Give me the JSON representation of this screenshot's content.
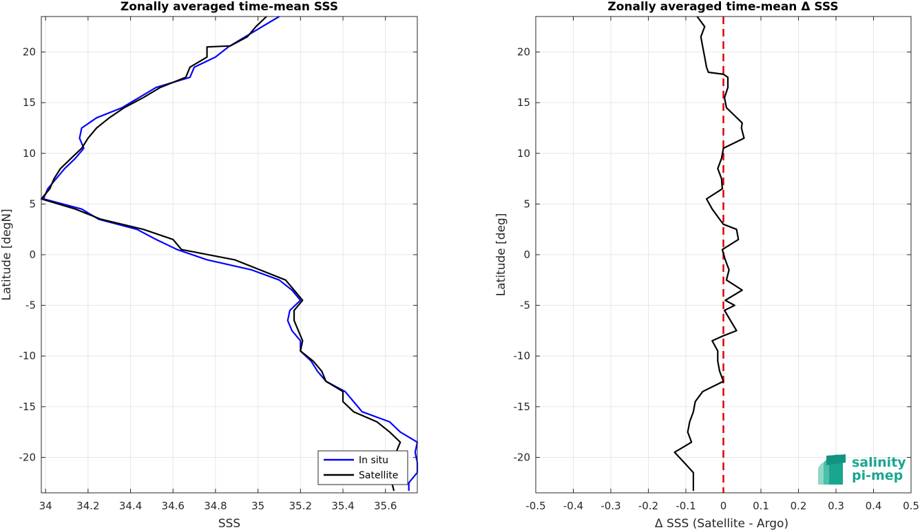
{
  "colors": {
    "in_situ": "#0000ff",
    "satellite": "#000000",
    "zero_line": "#e00000",
    "grid": "#e6e6e6",
    "logo": "#1aa58f"
  },
  "logo": {
    "line1": "salinity",
    "line2": "pi-mep"
  },
  "chart_data": [
    {
      "type": "line",
      "title": "Zonally averaged time-mean SSS",
      "xlabel": "SSS",
      "ylabel": "Latitude [degN]",
      "xlim": [
        33.98,
        35.75
      ],
      "ylim": [
        -23.5,
        23.5
      ],
      "xticks": [
        34,
        34.2,
        34.4,
        34.6,
        34.8,
        35,
        35.2,
        35.4,
        35.6
      ],
      "xtick_labels": [
        "34",
        "34.2",
        "34.4",
        "34.6",
        "34.8",
        "35",
        "35.2",
        "35.4",
        "35.6"
      ],
      "yticks": [
        -20,
        -15,
        -10,
        -5,
        0,
        5,
        10,
        15,
        20
      ],
      "ytick_labels": [
        "-20",
        "-15",
        "-10",
        "-5",
        "0",
        "5",
        "10",
        "15",
        "20"
      ],
      "grid": true,
      "legend": {
        "position": "bottom-right"
      },
      "series": [
        {
          "name": "In situ",
          "color": "#0000ff",
          "points": [
            [
              35.1,
              23.5
            ],
            [
              35.02,
              22.5
            ],
            [
              34.94,
              21.5
            ],
            [
              34.86,
              20.5
            ],
            [
              34.8,
              19.5
            ],
            [
              34.7,
              18.5
            ],
            [
              34.68,
              17.5
            ],
            [
              34.52,
              16.5
            ],
            [
              34.44,
              15.5
            ],
            [
              34.36,
              14.5
            ],
            [
              34.24,
              13.5
            ],
            [
              34.17,
              12.5
            ],
            [
              34.16,
              11.5
            ],
            [
              34.18,
              10.5
            ],
            [
              34.14,
              9.5
            ],
            [
              34.09,
              8.5
            ],
            [
              34.05,
              7.5
            ],
            [
              34.01,
              6.5
            ],
            [
              33.99,
              5.5
            ],
            [
              34.17,
              4.5
            ],
            [
              34.25,
              3.5
            ],
            [
              34.43,
              2.5
            ],
            [
              34.52,
              1.5
            ],
            [
              34.62,
              0.5
            ],
            [
              34.76,
              -0.5
            ],
            [
              34.97,
              -1.5
            ],
            [
              35.1,
              -2.5
            ],
            [
              35.16,
              -3.5
            ],
            [
              35.2,
              -4.5
            ],
            [
              35.15,
              -5.5
            ],
            [
              35.14,
              -6.5
            ],
            [
              35.16,
              -7.5
            ],
            [
              35.2,
              -8.5
            ],
            [
              35.2,
              -9.5
            ],
            [
              35.25,
              -10.5
            ],
            [
              35.28,
              -11.5
            ],
            [
              35.32,
              -12.5
            ],
            [
              35.41,
              -13.5
            ],
            [
              35.45,
              -14.5
            ],
            [
              35.49,
              -15.5
            ],
            [
              35.62,
              -16.5
            ],
            [
              35.67,
              -17.5
            ],
            [
              35.75,
              -18.5
            ],
            [
              35.74,
              -19.5
            ],
            [
              35.75,
              -20.5
            ],
            [
              35.75,
              -21.5
            ],
            [
              35.71,
              -22.5
            ],
            [
              35.71,
              -23.3
            ]
          ]
        },
        {
          "name": "Satellite",
          "color": "#000000",
          "points": [
            [
              35.04,
              23.5
            ],
            [
              34.99,
              22.5
            ],
            [
              34.95,
              21.5
            ],
            [
              34.87,
              20.6
            ],
            [
              34.76,
              20.5
            ],
            [
              34.76,
              19.5
            ],
            [
              34.68,
              18.5
            ],
            [
              34.66,
              17.5
            ],
            [
              34.54,
              16.5
            ],
            [
              34.46,
              15.5
            ],
            [
              34.37,
              14.5
            ],
            [
              34.3,
              13.5
            ],
            [
              34.24,
              12.5
            ],
            [
              34.2,
              11.5
            ],
            [
              34.17,
              10.5
            ],
            [
              34.12,
              9.5
            ],
            [
              34.07,
              8.5
            ],
            [
              34.04,
              7.5
            ],
            [
              34.02,
              6.5
            ],
            [
              33.98,
              5.5
            ],
            [
              34.14,
              4.5
            ],
            [
              34.26,
              3.5
            ],
            [
              34.46,
              2.5
            ],
            [
              34.6,
              1.5
            ],
            [
              34.64,
              0.5
            ],
            [
              34.89,
              -0.5
            ],
            [
              35.01,
              -1.5
            ],
            [
              35.13,
              -2.5
            ],
            [
              35.17,
              -3.5
            ],
            [
              35.21,
              -4.5
            ],
            [
              35.17,
              -5.5
            ],
            [
              35.17,
              -6.5
            ],
            [
              35.19,
              -7.5
            ],
            [
              35.21,
              -8.5
            ],
            [
              35.2,
              -9.5
            ],
            [
              35.26,
              -10.5
            ],
            [
              35.3,
              -11.5
            ],
            [
              35.32,
              -12.5
            ],
            [
              35.4,
              -13.5
            ],
            [
              35.4,
              -14.5
            ],
            [
              35.45,
              -15.5
            ],
            [
              35.56,
              -16.5
            ],
            [
              35.62,
              -17.5
            ],
            [
              35.67,
              -18.5
            ],
            [
              35.65,
              -19.5
            ],
            [
              35.64,
              -20.5
            ],
            [
              35.64,
              -21.5
            ],
            [
              35.63,
              -22.5
            ],
            [
              35.64,
              -23.3
            ]
          ]
        }
      ]
    },
    {
      "type": "line",
      "title": "Zonally averaged time-mean Δ SSS",
      "xlabel": "Δ SSS (Satellite - Argo)",
      "ylabel": "Latitude [deg]",
      "xlim": [
        -0.5,
        0.5
      ],
      "ylim": [
        -23.5,
        23.5
      ],
      "xticks": [
        -0.5,
        -0.4,
        -0.3,
        -0.2,
        -0.1,
        0,
        0.1,
        0.2,
        0.3,
        0.4,
        0.5
      ],
      "xtick_labels": [
        "-0.5",
        "-0.4",
        "-0.3",
        "-0.2",
        "-0.1",
        "0",
        "0.1",
        "0.2",
        "0.3",
        "0.4",
        "0.5"
      ],
      "yticks": [
        -20,
        -15,
        -10,
        -5,
        0,
        5,
        10,
        15,
        20
      ],
      "ytick_labels": [
        "-20",
        "-15",
        "-10",
        "-5",
        "0",
        "5",
        "10",
        "15",
        "20"
      ],
      "grid": true,
      "reference_line": {
        "x": 0,
        "style": "dashed",
        "color": "#e00000"
      },
      "series": [
        {
          "name": "",
          "color": "#000000",
          "points": [
            [
              -0.07,
              23.5
            ],
            [
              -0.05,
              22.5
            ],
            [
              -0.06,
              21.5
            ],
            [
              -0.055,
              20.5
            ],
            [
              -0.05,
              19.5
            ],
            [
              -0.045,
              18.5
            ],
            [
              -0.04,
              18.0
            ],
            [
              0.0,
              17.8
            ],
            [
              0.012,
              17.5
            ],
            [
              0.012,
              16.5
            ],
            [
              0.003,
              15.5
            ],
            [
              0.008,
              14.5
            ],
            [
              0.05,
              13.0
            ],
            [
              0.048,
              12.5
            ],
            [
              0.055,
              11.5
            ],
            [
              0.0,
              10.5
            ],
            [
              -0.005,
              9.5
            ],
            [
              -0.015,
              8.5
            ],
            [
              -0.005,
              7.5
            ],
            [
              -0.003,
              6.5
            ],
            [
              -0.045,
              5.5
            ],
            [
              -0.03,
              4.5
            ],
            [
              -0.01,
              3.5
            ],
            [
              0.0,
              3.0
            ],
            [
              0.035,
              2.5
            ],
            [
              0.04,
              1.5
            ],
            [
              -0.003,
              0.5
            ],
            [
              0.005,
              -0.5
            ],
            [
              0.015,
              -1.5
            ],
            [
              0.008,
              -2.5
            ],
            [
              0.05,
              -3.5
            ],
            [
              0.005,
              -4.5
            ],
            [
              0.03,
              -5.0
            ],
            [
              0.003,
              -5.5
            ],
            [
              0.035,
              -7.5
            ],
            [
              0.0,
              -8.0
            ],
            [
              -0.03,
              -8.5
            ],
            [
              -0.015,
              -9.5
            ],
            [
              -0.015,
              -10.5
            ],
            [
              -0.01,
              -11.5
            ],
            [
              0.0,
              -12.5
            ],
            [
              -0.055,
              -13.5
            ],
            [
              -0.075,
              -14.5
            ],
            [
              -0.08,
              -15.5
            ],
            [
              -0.09,
              -16.5
            ],
            [
              -0.095,
              -17.5
            ],
            [
              -0.085,
              -18.5
            ],
            [
              -0.13,
              -19.5
            ],
            [
              -0.105,
              -20.5
            ],
            [
              -0.08,
              -21.5
            ],
            [
              -0.08,
              -22.5
            ],
            [
              -0.08,
              -23.3
            ]
          ]
        }
      ]
    }
  ]
}
